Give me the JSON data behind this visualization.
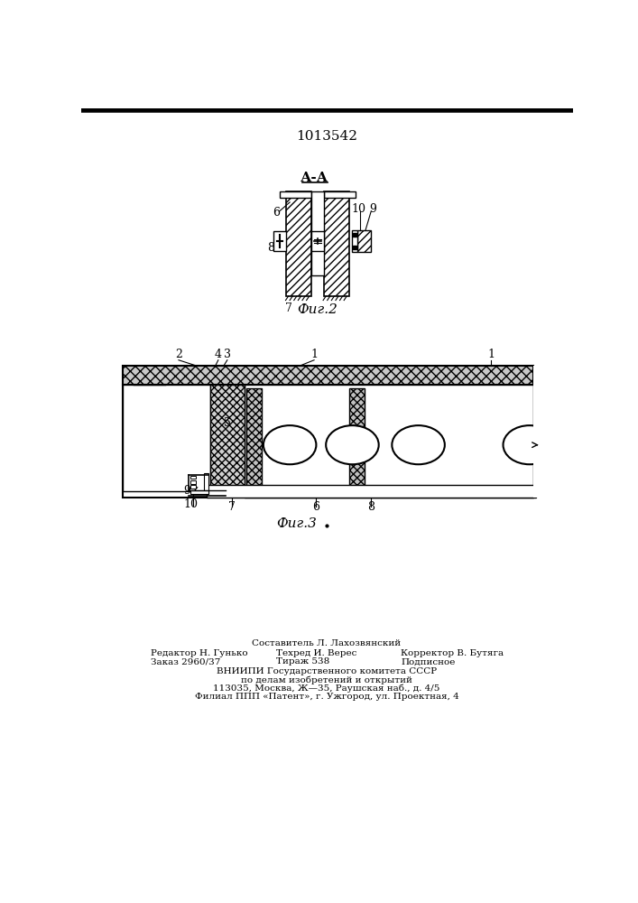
{
  "patent_number": "1013542",
  "fig2_label": "А-А",
  "fig2_caption": "Фиг.2",
  "fig3_caption": "Фиг.3",
  "footer_line1": "Составитель Л. Лахозвянский",
  "footer_line2_left": "Редактор Н. Гунько",
  "footer_line2_mid": "Техред И. Верес",
  "footer_line2_right": "Корректор В. Бутяга",
  "footer_line3_left": "Заказ 2960/37",
  "footer_line3_mid": "Тираж 538",
  "footer_line3_right": "Подписное",
  "footer_line4": "ВНИИПИ Государственного комитета СССР",
  "footer_line5": "по делам изобретений и открытий",
  "footer_line6": "113035, Москва, Ж—35, Раушская наб., д. 4/5",
  "footer_line7": "Филиал ППП «Патент», г. Ужгород, ул. Проектная, 4",
  "bg_color": "#ffffff"
}
